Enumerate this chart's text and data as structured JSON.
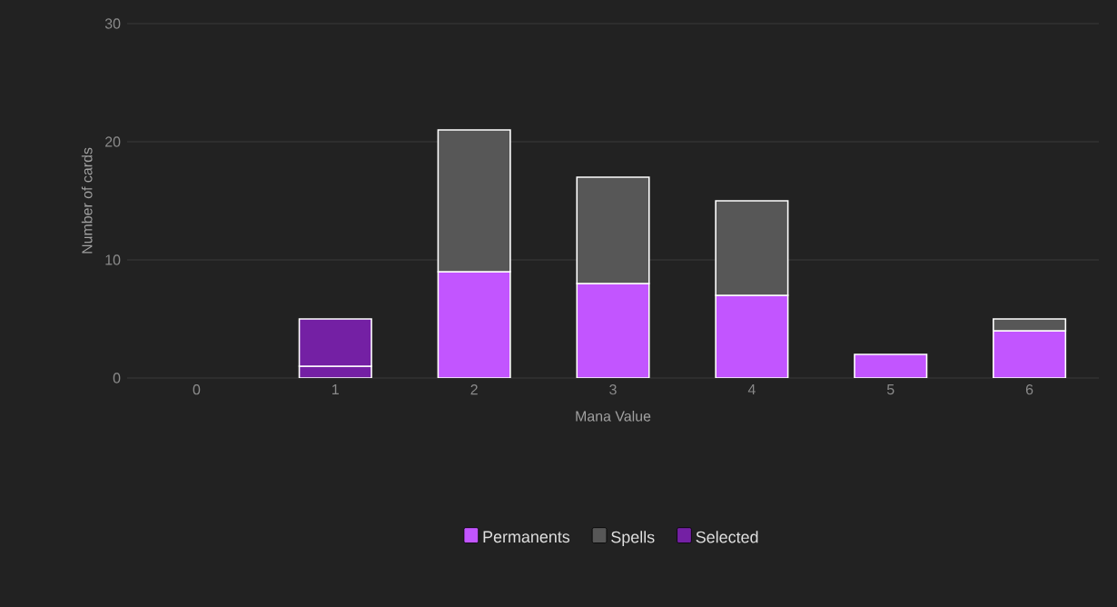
{
  "chart_data": {
    "type": "bar",
    "stacked": true,
    "xlabel": "Mana Value",
    "ylabel": "Number of cards",
    "categories": [
      "0",
      "1",
      "2",
      "3",
      "4",
      "5",
      "6"
    ],
    "series": [
      {
        "name": "Permanents",
        "color": "#c255ff",
        "colors": [
          "#c255ff",
          "#7420a4",
          "#c255ff",
          "#c255ff",
          "#c255ff",
          "#c255ff",
          "#c255ff"
        ],
        "values": [
          0,
          1,
          9,
          8,
          7,
          2,
          4
        ]
      },
      {
        "name": "Spells",
        "color": "#575757",
        "colors": [
          "#575757",
          "#7420a4",
          "#575757",
          "#575757",
          "#575757",
          "#575757",
          "#575757"
        ],
        "values": [
          0,
          4,
          12,
          9,
          8,
          0,
          1
        ]
      },
      {
        "name": "Selected",
        "color": "#7420a4",
        "values": [
          null,
          null,
          null,
          null,
          null,
          null,
          null
        ]
      }
    ],
    "ylim": [
      0,
      30
    ],
    "yticks": [
      0,
      10,
      20,
      30
    ],
    "grid": "y",
    "legend": "bottom"
  }
}
